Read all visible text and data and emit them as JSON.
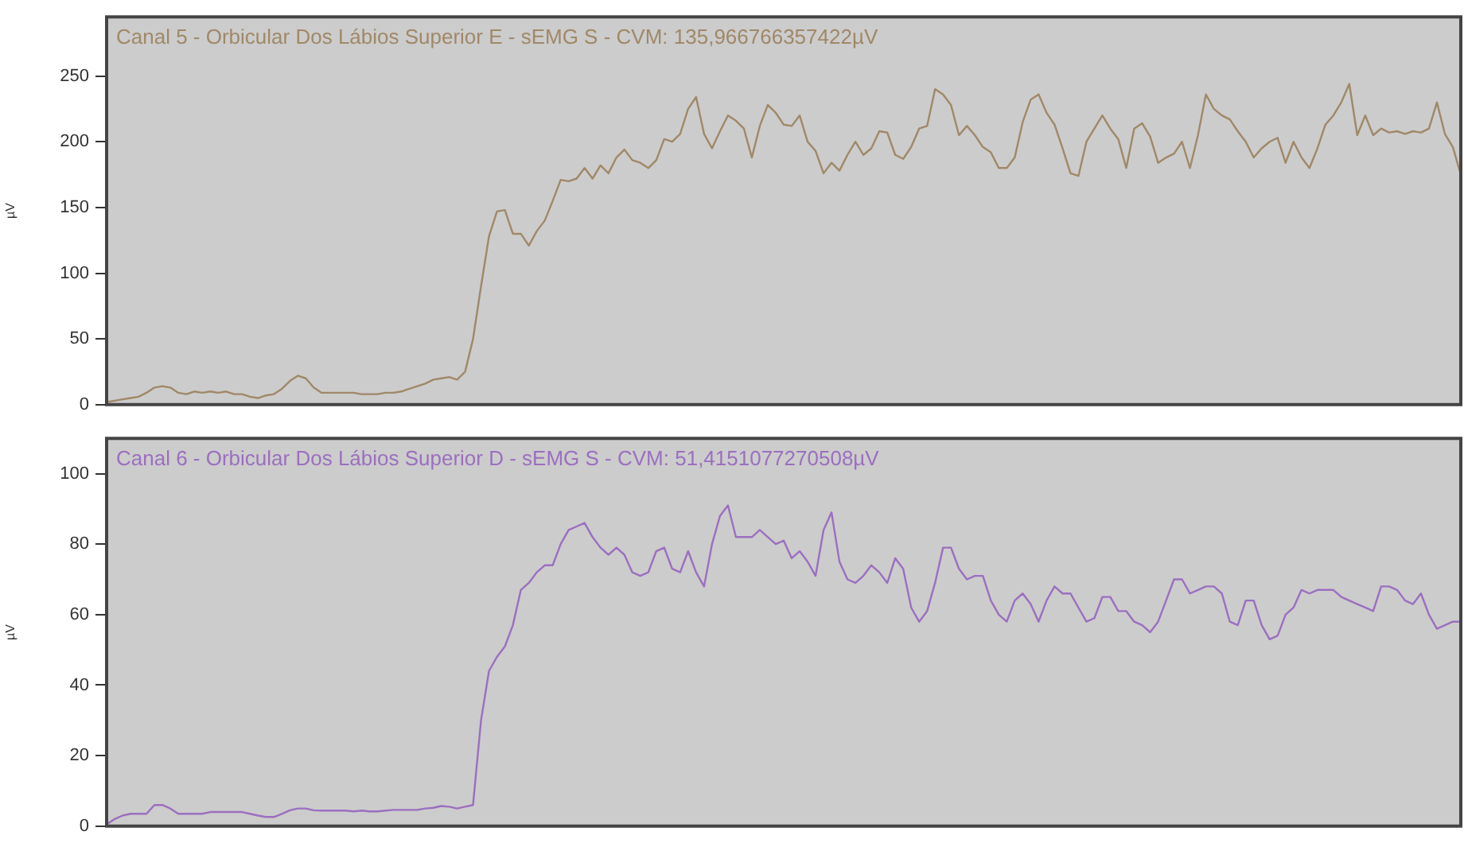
{
  "chart_data": [
    {
      "type": "line",
      "title": "Canal 5 - Orbicular Dos Lábios Superior E - sEMG S - CVM: 135,966766357422µV",
      "ylabel": "µV",
      "categories": [
        null,
        null,
        null,
        null,
        null,
        null,
        null,
        null,
        null,
        null,
        null,
        null,
        null,
        null,
        null,
        null,
        null,
        null,
        null,
        null,
        null,
        null,
        null,
        null,
        null,
        null,
        null,
        null,
        null,
        null,
        null,
        null,
        null,
        null,
        null,
        null,
        null,
        null,
        null,
        null,
        null,
        null,
        null,
        null,
        null,
        null,
        null,
        null,
        null,
        null,
        null,
        null,
        null,
        null,
        null,
        null,
        null,
        null,
        null,
        null,
        null,
        null,
        null,
        null,
        null,
        null,
        null,
        null,
        null,
        null,
        null,
        null,
        null,
        null,
        null,
        null,
        null,
        null,
        null,
        null,
        null,
        null,
        null,
        null,
        null,
        null,
        null,
        null,
        null,
        null,
        null,
        null,
        null,
        null,
        null,
        null,
        null,
        null,
        null,
        null,
        null,
        null,
        null,
        null,
        null,
        null,
        null,
        null,
        null,
        null,
        null,
        null,
        null,
        null,
        null,
        null,
        null,
        null,
        null,
        null,
        null,
        null,
        null,
        null,
        null,
        null,
        null,
        null,
        null,
        null,
        null,
        null,
        null,
        null,
        null,
        null,
        null,
        null,
        null,
        null,
        null,
        null,
        null,
        null,
        null,
        null,
        null,
        null,
        null,
        null,
        null,
        null,
        null,
        null,
        null,
        null,
        null,
        null,
        null,
        null,
        null,
        null,
        null,
        null,
        null,
        null,
        null,
        null,
        null,
        null,
        null
      ],
      "series": [
        {
          "color": "#a08868",
          "values": [
            2,
            3,
            4,
            5,
            6,
            9,
            13,
            14,
            13,
            9,
            8,
            10,
            9,
            10,
            9,
            10,
            8,
            8,
            6,
            5,
            7,
            8,
            12,
            18,
            22,
            20,
            13,
            9,
            9,
            9,
            9,
            9,
            8,
            8,
            8,
            9,
            9,
            10,
            12,
            14,
            16,
            19,
            20,
            21,
            19,
            25,
            50,
            90,
            128,
            147,
            148,
            130,
            130,
            121,
            132,
            140,
            155,
            171,
            170,
            172,
            180,
            172,
            182,
            176,
            188,
            194,
            186,
            184,
            180,
            186,
            202,
            200,
            206,
            225,
            234,
            206,
            195,
            208,
            220,
            216,
            210,
            188,
            212,
            228,
            222,
            213,
            212,
            220,
            200,
            193,
            176,
            184,
            178,
            190,
            200,
            190,
            195,
            208,
            207,
            190,
            187,
            196,
            210,
            212,
            240,
            236,
            228,
            205,
            212,
            205,
            196,
            192,
            180,
            180,
            188,
            215,
            232,
            236,
            222,
            213,
            195,
            176,
            174,
            200,
            210,
            220,
            210,
            202,
            180,
            210,
            214,
            204,
            184,
            188,
            191,
            200,
            180,
            205,
            236,
            225,
            220,
            217,
            208,
            200,
            188,
            195,
            200,
            203,
            184,
            200,
            188,
            180,
            195,
            213,
            220,
            230,
            244,
            205,
            220,
            205,
            210,
            207,
            208,
            206,
            208,
            207,
            210,
            230,
            206,
            196,
            175
          ]
        }
      ],
      "ylim": [
        0,
        295
      ],
      "yticks": [
        0,
        50,
        100,
        150,
        200,
        250
      ],
      "tick_labels": "y",
      "grid": false,
      "legend": false,
      "marker": "none",
      "line_style": "solid"
    },
    {
      "type": "line",
      "title": "Canal 6 - Orbicular Dos Lábios Superior D - sEMG S - CVM: 51,4151077270508µV",
      "ylabel": "µV",
      "categories": [
        null,
        null,
        null,
        null,
        null,
        null,
        null,
        null,
        null,
        null,
        null,
        null,
        null,
        null,
        null,
        null,
        null,
        null,
        null,
        null,
        null,
        null,
        null,
        null,
        null,
        null,
        null,
        null,
        null,
        null,
        null,
        null,
        null,
        null,
        null,
        null,
        null,
        null,
        null,
        null,
        null,
        null,
        null,
        null,
        null,
        null,
        null,
        null,
        null,
        null,
        null,
        null,
        null,
        null,
        null,
        null,
        null,
        null,
        null,
        null,
        null,
        null,
        null,
        null,
        null,
        null,
        null,
        null,
        null,
        null,
        null,
        null,
        null,
        null,
        null,
        null,
        null,
        null,
        null,
        null,
        null,
        null,
        null,
        null,
        null,
        null,
        null,
        null,
        null,
        null,
        null,
        null,
        null,
        null,
        null,
        null,
        null,
        null,
        null,
        null,
        null,
        null,
        null,
        null,
        null,
        null,
        null,
        null,
        null,
        null,
        null,
        null,
        null,
        null,
        null,
        null,
        null,
        null,
        null,
        null,
        null,
        null,
        null,
        null,
        null,
        null,
        null,
        null,
        null,
        null,
        null,
        null,
        null,
        null,
        null,
        null,
        null,
        null,
        null,
        null,
        null,
        null,
        null,
        null,
        null,
        null,
        null,
        null,
        null,
        null,
        null,
        null,
        null,
        null,
        null,
        null,
        null,
        null,
        null,
        null,
        null,
        null,
        null,
        null,
        null,
        null,
        null,
        null,
        null,
        null,
        null
      ],
      "series": [
        {
          "color": "#9b6fc0",
          "values": [
            0.5,
            2,
            3,
            3.5,
            3.5,
            3.5,
            6,
            6,
            5,
            3.5,
            3.5,
            3.5,
            3.5,
            4,
            4,
            4,
            4,
            4,
            3.5,
            3,
            2.6,
            2.6,
            3.5,
            4.5,
            5,
            5,
            4.5,
            4.4,
            4.4,
            4.4,
            4.4,
            4.2,
            4.4,
            4.2,
            4.2,
            4.4,
            4.6,
            4.6,
            4.6,
            4.6,
            5,
            5.2,
            5.7,
            5.5,
            5,
            5.5,
            6,
            30,
            44,
            48,
            51,
            57,
            67,
            69,
            72,
            74,
            74,
            80,
            84,
            85,
            86,
            82,
            79,
            77,
            79,
            77,
            72,
            71,
            72,
            78,
            79,
            73,
            72,
            78,
            72,
            68,
            80,
            88,
            91,
            82,
            82,
            82,
            84,
            82,
            80,
            81,
            76,
            78,
            75,
            71,
            84,
            89,
            75,
            70,
            69,
            71,
            74,
            72,
            69,
            76,
            73,
            62,
            58,
            61,
            69,
            79,
            79,
            73,
            70,
            71,
            71,
            64,
            60,
            58,
            64,
            66,
            63,
            58,
            64,
            68,
            66,
            66,
            62,
            58,
            59,
            65,
            65,
            61,
            61,
            58,
            57,
            55,
            58,
            64,
            70,
            70,
            66,
            67,
            68,
            68,
            66,
            58,
            57,
            64,
            64,
            57,
            53,
            54,
            60,
            62,
            67,
            66,
            67,
            67,
            67,
            65,
            64,
            63,
            62,
            61,
            68,
            68,
            67,
            64,
            63,
            66,
            60,
            56,
            57,
            58,
            58
          ]
        }
      ],
      "ylim": [
        0,
        110
      ],
      "yticks": [
        0,
        20,
        40,
        60,
        80,
        100
      ],
      "tick_labels": "y",
      "grid": false,
      "legend": false,
      "marker": "none",
      "line_style": "solid"
    }
  ]
}
